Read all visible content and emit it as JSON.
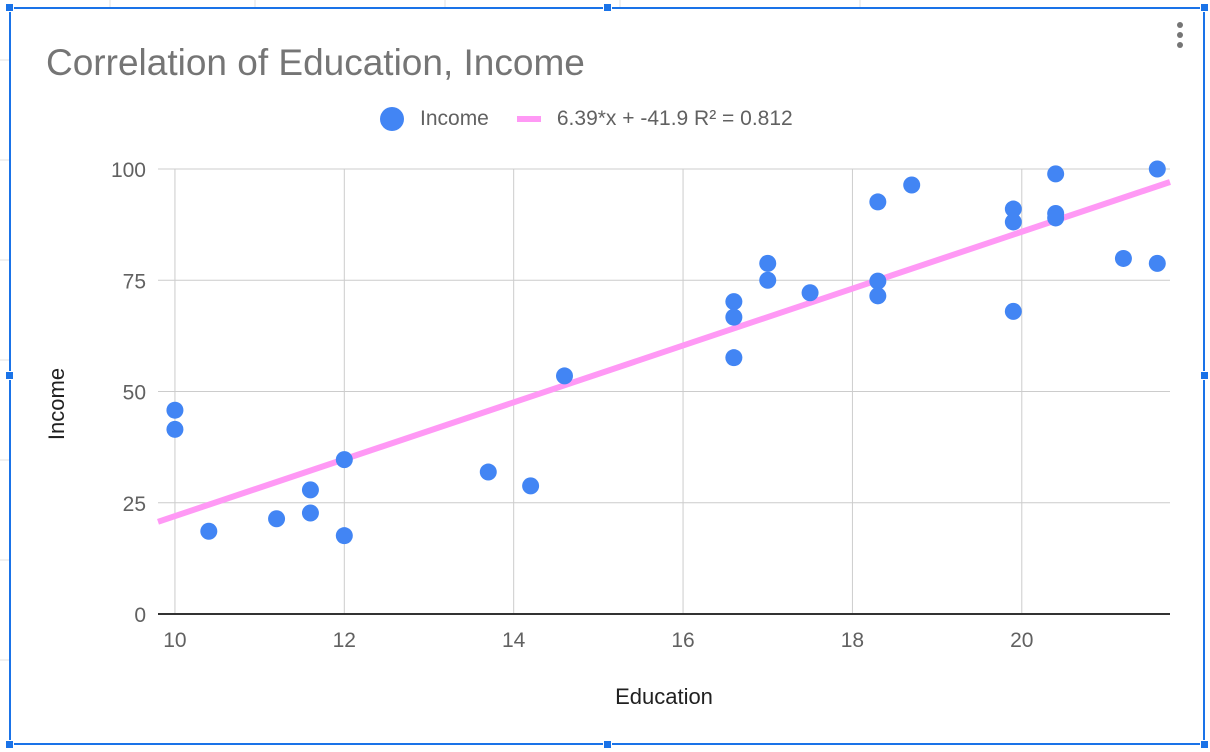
{
  "chart_data": {
    "type": "scatter",
    "title": "Correlation of Education, Income",
    "xlabel": "Education",
    "ylabel": "Income",
    "xlim": [
      9.8,
      21.75
    ],
    "ylim": [
      0,
      100
    ],
    "x_ticks": [
      "10",
      "12",
      "14",
      "16",
      "18",
      "20"
    ],
    "y_ticks": [
      "0",
      "25",
      "50",
      "75",
      "100"
    ],
    "grid": true,
    "legend_position": "top",
    "series": [
      {
        "name": "Income",
        "color": "#4285f4",
        "points": [
          [
            10.0,
            45.8
          ],
          [
            10.0,
            41.5
          ],
          [
            10.4,
            18.6
          ],
          [
            11.2,
            21.4
          ],
          [
            11.6,
            27.9
          ],
          [
            11.6,
            22.7
          ],
          [
            12.0,
            34.7
          ],
          [
            12.0,
            17.6
          ],
          [
            13.7,
            31.9
          ],
          [
            14.2,
            28.8
          ],
          [
            14.6,
            53.5
          ],
          [
            16.6,
            70.2
          ],
          [
            16.6,
            66.7
          ],
          [
            16.6,
            57.6
          ],
          [
            17.0,
            78.8
          ],
          [
            17.0,
            75.0
          ],
          [
            17.5,
            72.2
          ],
          [
            18.3,
            92.6
          ],
          [
            18.3,
            74.8
          ],
          [
            18.3,
            71.5
          ],
          [
            18.7,
            96.4
          ],
          [
            19.9,
            91.0
          ],
          [
            19.9,
            88.1
          ],
          [
            19.9,
            68.0
          ],
          [
            20.4,
            98.9
          ],
          [
            20.4,
            90.0
          ],
          [
            20.4,
            89.0
          ],
          [
            21.2,
            79.9
          ],
          [
            21.6,
            100.0
          ],
          [
            21.6,
            78.8
          ]
        ]
      }
    ],
    "trendline": {
      "name": "6.39*x + -41.9 R² = 0.812",
      "slope": 6.39,
      "intercept": -41.9,
      "color": "#ff99f5"
    }
  }
}
